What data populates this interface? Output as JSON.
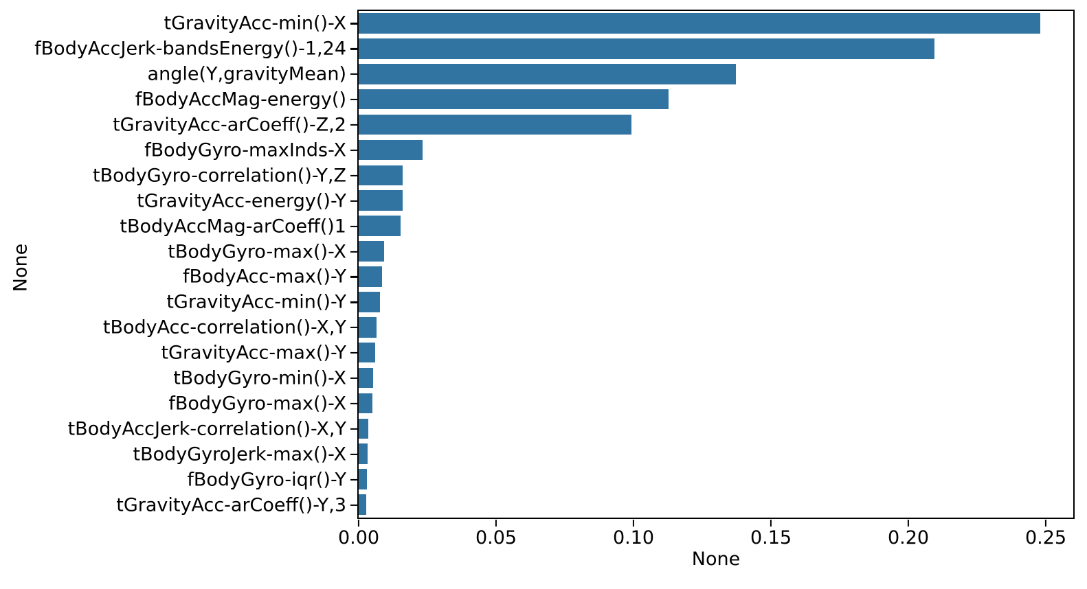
{
  "chart_data": {
    "type": "bar",
    "orientation": "horizontal",
    "title": "",
    "xlabel": "None",
    "ylabel": "None",
    "xlim": [
      0,
      0.26
    ],
    "grid": false,
    "legend": null,
    "bar_color": "#3274a1",
    "spine_color": "#000000",
    "xticks": [
      0.0,
      0.05,
      0.1,
      0.15,
      0.2,
      0.25
    ],
    "xtick_labels": [
      "0.00",
      "0.05",
      "0.10",
      "0.15",
      "0.20",
      "0.25"
    ],
    "categories": [
      "tGravityAcc-min()-X",
      "fBodyAccJerk-bandsEnergy()-1,24",
      "angle(Y,gravityMean)",
      "fBodyAccMag-energy()",
      "tGravityAcc-arCoeff()-Z,2",
      "fBodyGyro-maxInds-X",
      "tBodyGyro-correlation()-Y,Z",
      "tGravityAcc-energy()-Y",
      "tBodyAccMag-arCoeff()1",
      "tBodyGyro-max()-X",
      "fBodyAcc-max()-Y",
      "tGravityAcc-min()-Y",
      "tBodyAcc-correlation()-X,Y",
      "tGravityAcc-max()-Y",
      "tBodyGyro-min()-X",
      "fBodyGyro-max()-X",
      "tBodyAccJerk-correlation()-X,Y",
      "tBodyGyroJerk-max()-X",
      "fBodyGyro-iqr()-Y",
      "tGravityAcc-arCoeff()-Y,3"
    ],
    "values": [
      0.248,
      0.2095,
      0.1373,
      0.1128,
      0.0993,
      0.0233,
      0.016,
      0.016,
      0.0153,
      0.0093,
      0.0085,
      0.0079,
      0.0065,
      0.006,
      0.0053,
      0.005,
      0.0037,
      0.0033,
      0.0032,
      0.0028
    ]
  }
}
